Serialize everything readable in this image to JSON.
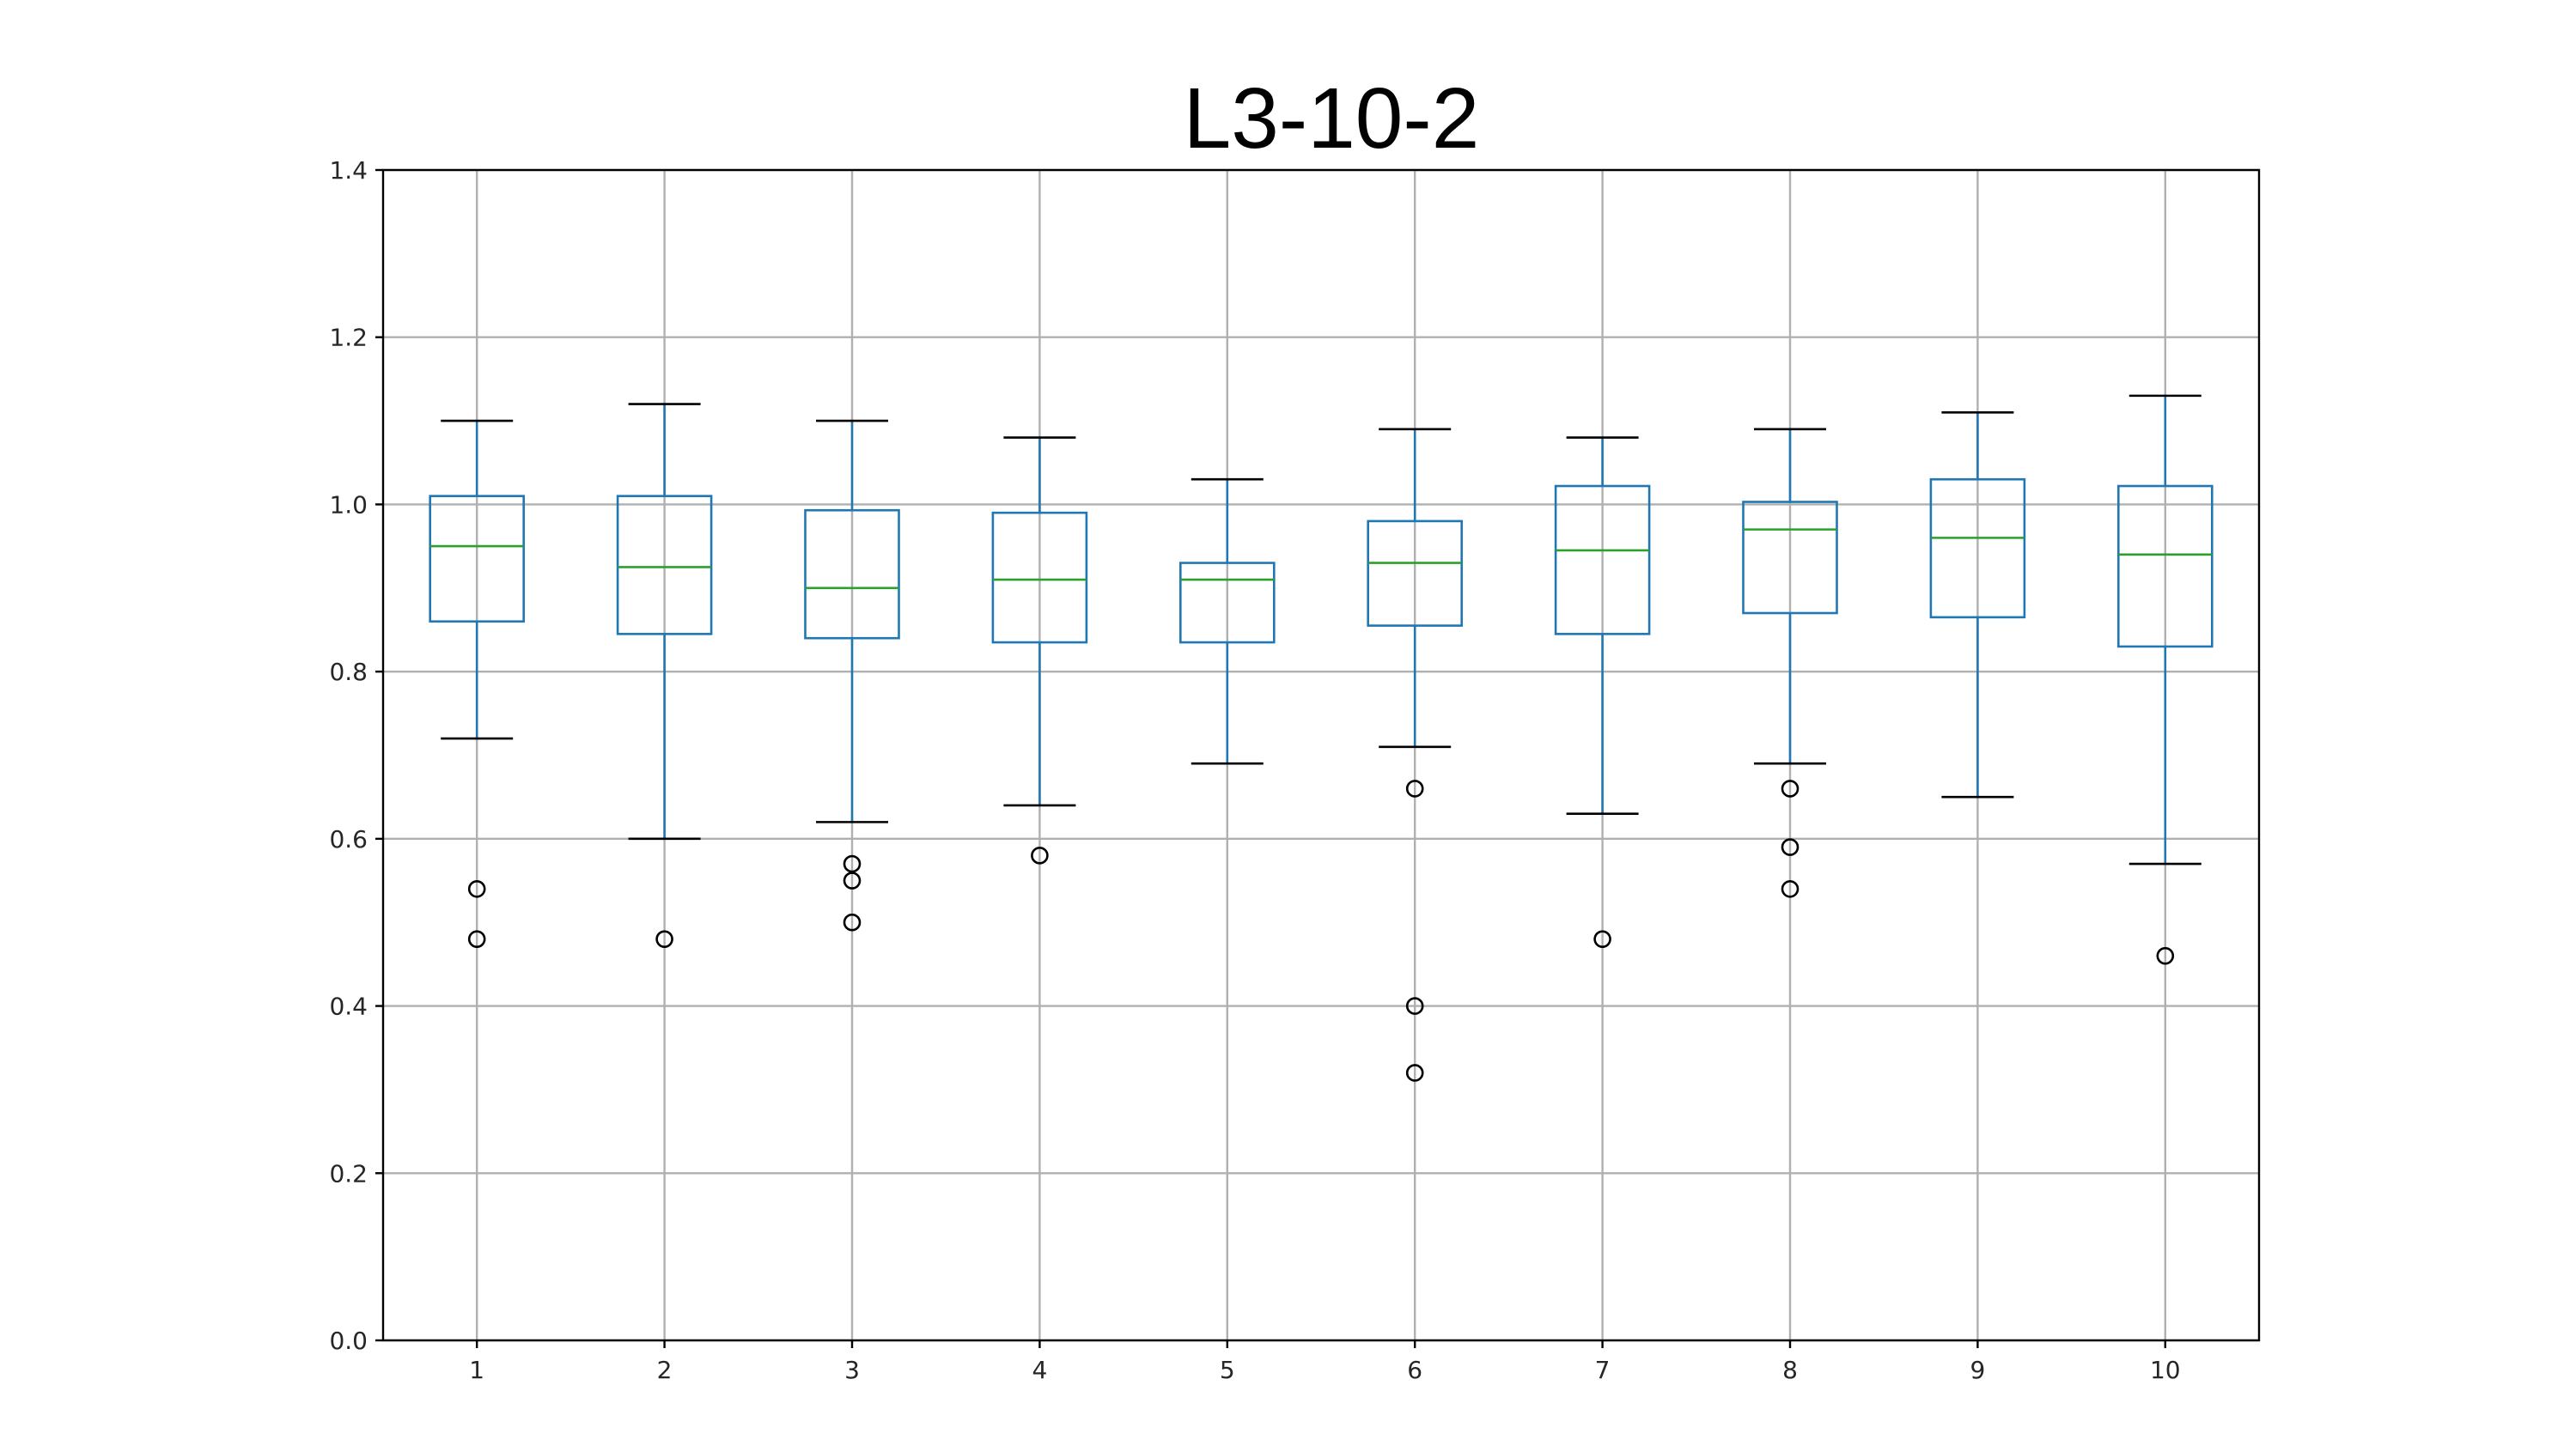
{
  "chart_data": {
    "type": "box",
    "title": "L3-10-2",
    "xlabel": "",
    "ylabel": "",
    "ylim": [
      0.0,
      1.4
    ],
    "yticks": [
      0.0,
      0.2,
      0.4,
      0.6,
      0.8,
      1.0,
      1.2,
      1.4
    ],
    "ytick_labels": [
      "0.0",
      "0.2",
      "0.4",
      "0.6",
      "0.8",
      "1.0",
      "1.2",
      "1.4"
    ],
    "categories": [
      "1",
      "2",
      "3",
      "4",
      "5",
      "6",
      "7",
      "8",
      "9",
      "10"
    ],
    "grid": true,
    "box_color": "#1f77b4",
    "median_color": "#2ca02c",
    "cap_color": "#000000",
    "flier_color": "#000000",
    "boxes": [
      {
        "label": "1",
        "whislo": 0.72,
        "q1": 0.86,
        "med": 0.95,
        "q3": 1.01,
        "whishi": 1.1,
        "fliers": [
          0.54,
          0.48
        ]
      },
      {
        "label": "2",
        "whislo": 0.6,
        "q1": 0.845,
        "med": 0.925,
        "q3": 1.01,
        "whishi": 1.12,
        "fliers": [
          0.48
        ]
      },
      {
        "label": "3",
        "whislo": 0.62,
        "q1": 0.84,
        "med": 0.9,
        "q3": 0.993,
        "whishi": 1.1,
        "fliers": [
          0.57,
          0.55,
          0.5
        ]
      },
      {
        "label": "4",
        "whislo": 0.64,
        "q1": 0.835,
        "med": 0.91,
        "q3": 0.99,
        "whishi": 1.08,
        "fliers": [
          0.58
        ]
      },
      {
        "label": "5",
        "whislo": 0.69,
        "q1": 0.835,
        "med": 0.91,
        "q3": 0.93,
        "whishi": 1.03,
        "fliers": []
      },
      {
        "label": "6",
        "whislo": 0.71,
        "q1": 0.855,
        "med": 0.93,
        "q3": 0.98,
        "whishi": 1.09,
        "fliers": [
          0.66,
          0.4,
          0.32
        ]
      },
      {
        "label": "7",
        "whislo": 0.63,
        "q1": 0.845,
        "med": 0.945,
        "q3": 1.022,
        "whishi": 1.08,
        "fliers": [
          0.48
        ]
      },
      {
        "label": "8",
        "whislo": 0.69,
        "q1": 0.87,
        "med": 0.97,
        "q3": 1.003,
        "whishi": 1.09,
        "fliers": [
          0.66,
          0.59,
          0.54
        ]
      },
      {
        "label": "9",
        "whislo": 0.65,
        "q1": 0.865,
        "med": 0.96,
        "q3": 1.03,
        "whishi": 1.11,
        "fliers": []
      },
      {
        "label": "10",
        "whislo": 0.57,
        "q1": 0.83,
        "med": 0.94,
        "q3": 1.022,
        "whishi": 1.13,
        "fliers": [
          0.46
        ]
      }
    ]
  }
}
